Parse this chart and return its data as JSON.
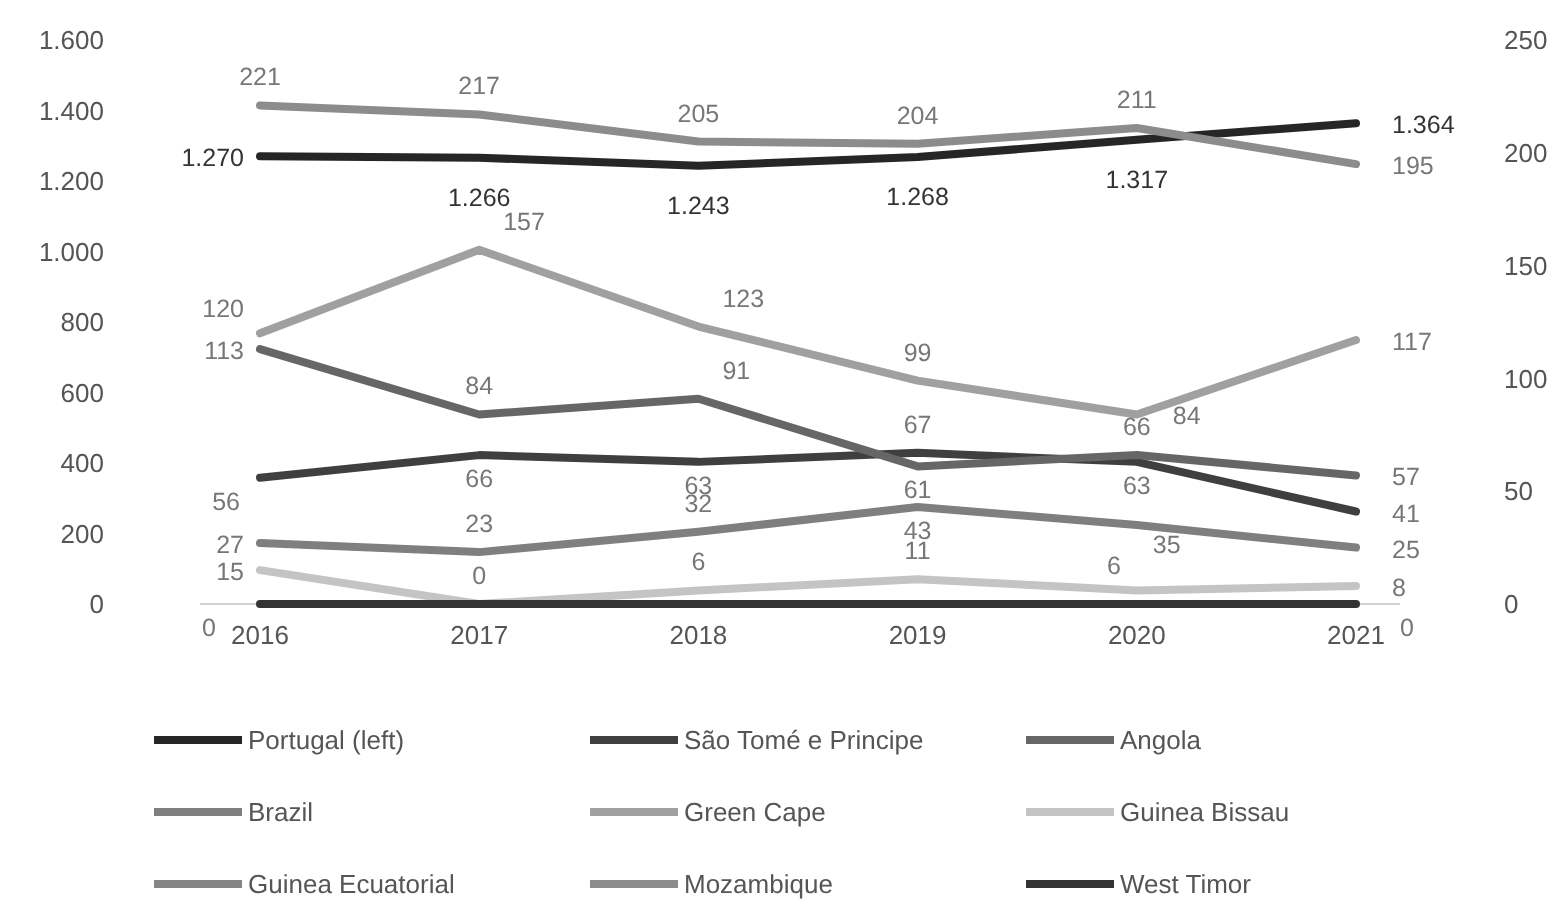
{
  "chart_data": {
    "type": "line",
    "categories": [
      "2016",
      "2017",
      "2018",
      "2019",
      "2020",
      "2021"
    ],
    "series": [
      {
        "name": "Portugal (left)",
        "color": "#262626",
        "values": [
          1270,
          1266,
          1243,
          1268,
          1317,
          1364
        ],
        "value_labels": [
          "1.270",
          "1.266",
          "1.243",
          "1.268",
          "1.317",
          "1.364"
        ]
      },
      {
        "name": "São Tomé e Principe",
        "color": "#3f3f3f",
        "axis": "y2",
        "values": [
          56,
          66,
          63,
          67,
          63,
          41
        ],
        "value_labels": [
          "56",
          "66",
          "63",
          "67",
          "63",
          "41"
        ]
      },
      {
        "name": "Angola",
        "color": "#666666",
        "axis": "y2",
        "values": [
          113,
          84,
          91,
          61,
          66,
          57
        ],
        "value_labels": [
          "113",
          "84",
          "91",
          "61",
          "66",
          "57"
        ]
      },
      {
        "name": "Brazil",
        "color": "#7f7f7f",
        "axis": "y2",
        "values": [
          27,
          23,
          32,
          43,
          35,
          25
        ],
        "value_labels": [
          "27",
          "23",
          "32",
          "43",
          "35",
          "25"
        ]
      },
      {
        "name": "Green Cape",
        "color": "#a0a0a0",
        "axis": "y2",
        "values": [
          120,
          157,
          123,
          99,
          84,
          117
        ],
        "value_labels": [
          "120",
          "157",
          "123",
          "99",
          "84",
          "117"
        ]
      },
      {
        "name": "Guinea Bissau",
        "color": "#c4c4c4",
        "axis": "y2",
        "values": [
          15,
          0,
          6,
          11,
          6,
          8
        ],
        "value_labels": [
          "15",
          "0",
          "6",
          "11",
          "6",
          "8"
        ]
      },
      {
        "name": "Guinea Ecuatorial",
        "color": "#858585",
        "axis": "y2",
        "values": [
          null,
          null,
          null,
          null,
          null,
          null
        ]
      },
      {
        "name": "Mozambique",
        "color": "#8c8c8c",
        "axis": "y2",
        "values": [
          221,
          217,
          205,
          204,
          211,
          195
        ],
        "value_labels": [
          "221",
          "217",
          "205",
          "204",
          "211",
          "195"
        ]
      },
      {
        "name": "West Timor",
        "color": "#333333",
        "axis": "y2",
        "values": [
          0,
          0,
          0,
          0,
          0,
          0
        ],
        "value_labels": [
          "0",
          null,
          null,
          null,
          null,
          "0"
        ]
      }
    ],
    "ylim": [
      0,
      1600
    ],
    "yticks": [
      0,
      {
        "value": 200,
        "label": "200"
      },
      400,
      600,
      800,
      {
        "value": 1000,
        "label": "1.000"
      },
      {
        "value": 1200,
        "label": "1.200"
      },
      {
        "value": 1400,
        "label": "1.400"
      },
      {
        "value": 1600,
        "label": "1.600"
      }
    ],
    "y2lim": [
      0,
      250
    ],
    "y2ticks": [
      0,
      50,
      100,
      150,
      200,
      250
    ],
    "grid": false,
    "legend": "bottom"
  }
}
